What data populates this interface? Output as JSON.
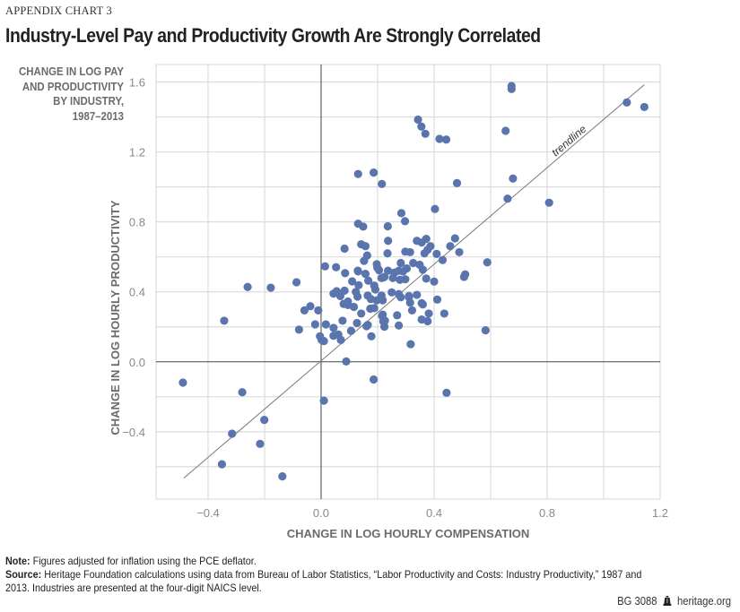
{
  "header": {
    "kicker": "APPENDIX CHART 3",
    "title": "Industry-Level Pay and Productivity Growth Are Strongly Correlated"
  },
  "y_label_block": [
    "CHANGE IN LOG PAY",
    "AND PRODUCTIVITY",
    "BY INDUSTRY,",
    "1987–2013"
  ],
  "notes": {
    "note_label": "Note:",
    "note_text": " Figures adjusted for inflation using the PCE deflator.",
    "source_label": "Source:",
    "source_text_1": " Heritage Foundation calculations using data from Bureau of Labor Statistics, “Labor Productivity and Costs: Industry Productivity,” 1987 and",
    "source_text_2": "2013. Industries are presented at the four-digit NAICS level."
  },
  "footer": {
    "report_id": "BG 3088",
    "logo_icon": "liberty-bell-icon",
    "site": "heritage.org"
  },
  "chart_data": {
    "type": "scatter",
    "title": "Industry-Level Pay and Productivity Growth Are Strongly Correlated",
    "xlabel": "CHANGE IN LOG HOURLY COMPENSATION",
    "ylabel": "CHANGE IN LOG HOURLY PRODUCTIVITY",
    "xlim": [
      -0.584,
      1.2
    ],
    "ylim": [
      -0.785,
      1.7
    ],
    "x_ticks": [
      -0.4,
      0.0,
      0.4,
      0.8,
      1.2
    ],
    "x_tick_labels": [
      "−0.4",
      "0.0",
      "0.4",
      "0.8",
      "1.2"
    ],
    "y_ticks": [
      -0.4,
      0.0,
      0.4,
      0.8,
      1.2,
      1.6
    ],
    "y_tick_labels": [
      "−0.4",
      "0.0",
      "0.4",
      "0.8",
      "1.2",
      "1.6"
    ],
    "x_gridlines": [
      -0.4,
      -0.2,
      0.2,
      0.4,
      0.6,
      0.8,
      1.0
    ],
    "y_gridlines": [
      -0.6,
      -0.4,
      -0.2,
      0.2,
      0.4,
      0.6,
      0.8,
      1.0,
      1.2,
      1.4,
      1.6
    ],
    "grid": true,
    "marker_color": "#5a74ad",
    "trendline": {
      "label": "trendline",
      "x": [
        -0.486,
        1.144
      ],
      "y": [
        -0.665,
        1.585
      ]
    },
    "points": [
      [
        0.674,
        1.577
      ],
      [
        0.674,
        1.56
      ],
      [
        1.082,
        1.483
      ],
      [
        1.144,
        1.457
      ],
      [
        0.343,
        1.385
      ],
      [
        0.355,
        1.345
      ],
      [
        0.369,
        1.304
      ],
      [
        0.653,
        1.321
      ],
      [
        0.419,
        1.275
      ],
      [
        0.443,
        1.271
      ],
      [
        0.131,
        1.074
      ],
      [
        0.186,
        1.082
      ],
      [
        0.679,
        1.048
      ],
      [
        0.215,
        1.017
      ],
      [
        0.481,
        1.022
      ],
      [
        0.66,
        0.933
      ],
      [
        0.807,
        0.91
      ],
      [
        0.403,
        0.874
      ],
      [
        0.284,
        0.85
      ],
      [
        0.297,
        0.804
      ],
      [
        0.131,
        0.79
      ],
      [
        0.149,
        0.773
      ],
      [
        0.236,
        0.775
      ],
      [
        0.474,
        0.706
      ],
      [
        0.372,
        0.703
      ],
      [
        0.339,
        0.692
      ],
      [
        0.237,
        0.692
      ],
      [
        0.356,
        0.682
      ],
      [
        0.142,
        0.672
      ],
      [
        0.157,
        0.661
      ],
      [
        0.387,
        0.661
      ],
      [
        0.457,
        0.661
      ],
      [
        0.083,
        0.647
      ],
      [
        0.377,
        0.641
      ],
      [
        0.298,
        0.63
      ],
      [
        0.315,
        0.627
      ],
      [
        0.489,
        0.627
      ],
      [
        0.235,
        0.62
      ],
      [
        0.366,
        0.62
      ],
      [
        0.409,
        0.617
      ],
      [
        0.163,
        0.608
      ],
      [
        0.43,
        0.582
      ],
      [
        0.152,
        0.577
      ],
      [
        0.588,
        0.569
      ],
      [
        0.282,
        0.565
      ],
      [
        0.326,
        0.565
      ],
      [
        0.197,
        0.558
      ],
      [
        0.349,
        0.555
      ],
      [
        0.014,
        0.546
      ],
      [
        0.053,
        0.541
      ],
      [
        0.199,
        0.538
      ],
      [
        0.303,
        0.534
      ],
      [
        0.36,
        0.527
      ],
      [
        0.205,
        0.524
      ],
      [
        0.237,
        0.521
      ],
      [
        0.275,
        0.521
      ],
      [
        0.13,
        0.521
      ],
      [
        0.131,
        0.517
      ],
      [
        0.29,
        0.517
      ],
      [
        0.26,
        0.51
      ],
      [
        0.085,
        0.507
      ],
      [
        0.157,
        0.503
      ],
      [
        0.51,
        0.5
      ],
      [
        0.506,
        0.486
      ],
      [
        0.224,
        0.486
      ],
      [
        0.22,
        0.482
      ],
      [
        0.214,
        0.479
      ],
      [
        0.254,
        0.479
      ],
      [
        0.372,
        0.476
      ],
      [
        0.298,
        0.472
      ],
      [
        0.279,
        0.469
      ],
      [
        0.167,
        0.464
      ],
      [
        0.11,
        0.46
      ],
      [
        0.4,
        0.459
      ],
      [
        -0.087,
        0.455
      ],
      [
        0.133,
        0.438
      ],
      [
        0.188,
        0.436
      ],
      [
        -0.26,
        0.428
      ],
      [
        -0.178,
        0.424
      ],
      [
        0.192,
        0.414
      ],
      [
        0.083,
        0.407
      ],
      [
        0.055,
        0.404
      ],
      [
        0.123,
        0.4
      ],
      [
        0.25,
        0.397
      ],
      [
        0.044,
        0.39
      ],
      [
        0.275,
        0.387
      ],
      [
        0.339,
        0.383
      ],
      [
        0.165,
        0.379
      ],
      [
        0.214,
        0.379
      ],
      [
        0.068,
        0.376
      ],
      [
        0.311,
        0.376
      ],
      [
        0.129,
        0.373
      ],
      [
        0.282,
        0.369
      ],
      [
        0.311,
        0.369
      ],
      [
        0.176,
        0.359
      ],
      [
        0.411,
        0.356
      ],
      [
        0.197,
        0.352
      ],
      [
        0.218,
        0.352
      ],
      [
        0.095,
        0.345
      ],
      [
        0.315,
        0.338
      ],
      [
        0.356,
        0.335
      ],
      [
        0.08,
        0.331
      ],
      [
        0.36,
        0.328
      ],
      [
        0.095,
        0.325
      ],
      [
        -0.038,
        0.318
      ],
      [
        0.116,
        0.314
      ],
      [
        0.188,
        0.307
      ],
      [
        0.174,
        0.304
      ],
      [
        -0.059,
        0.294
      ],
      [
        -0.01,
        0.294
      ],
      [
        0.322,
        0.294
      ],
      [
        0.142,
        0.276
      ],
      [
        0.381,
        0.276
      ],
      [
        0.436,
        0.276
      ],
      [
        0.218,
        0.27
      ],
      [
        0.269,
        0.266
      ],
      [
        0.216,
        0.263
      ],
      [
        0.356,
        0.242
      ],
      [
        -0.343,
        0.235
      ],
      [
        0.076,
        0.235
      ],
      [
        0.226,
        0.235
      ],
      [
        0.22,
        0.232
      ],
      [
        0.377,
        0.232
      ],
      [
        0.127,
        0.222
      ],
      [
        -0.021,
        0.214
      ],
      [
        0.017,
        0.214
      ],
      [
        0.165,
        0.211
      ],
      [
        0.275,
        0.208
      ],
      [
        0.161,
        0.204
      ],
      [
        0.224,
        0.201
      ],
      [
        0.044,
        0.194
      ],
      [
        -0.078,
        0.184
      ],
      [
        0.582,
        0.18
      ],
      [
        0.106,
        0.177
      ],
      [
        0.061,
        0.156
      ],
      [
        0.044,
        0.149
      ],
      [
        -0.004,
        0.146
      ],
      [
        0.178,
        0.146
      ],
      [
        0.002,
        0.125
      ],
      [
        0.07,
        0.125
      ],
      [
        0.01,
        0.119
      ],
      [
        0.317,
        0.101
      ],
      [
        0.089,
        0.002
      ],
      [
        0.186,
        -0.101
      ],
      [
        -0.489,
        -0.119
      ],
      [
        -0.279,
        -0.174
      ],
      [
        0.444,
        -0.177
      ],
      [
        0.01,
        -0.222
      ],
      [
        -0.201,
        -0.332
      ],
      [
        -0.315,
        -0.411
      ],
      [
        -0.216,
        -0.469
      ],
      [
        -0.351,
        -0.586
      ],
      [
        -0.137,
        -0.655
      ]
    ]
  }
}
